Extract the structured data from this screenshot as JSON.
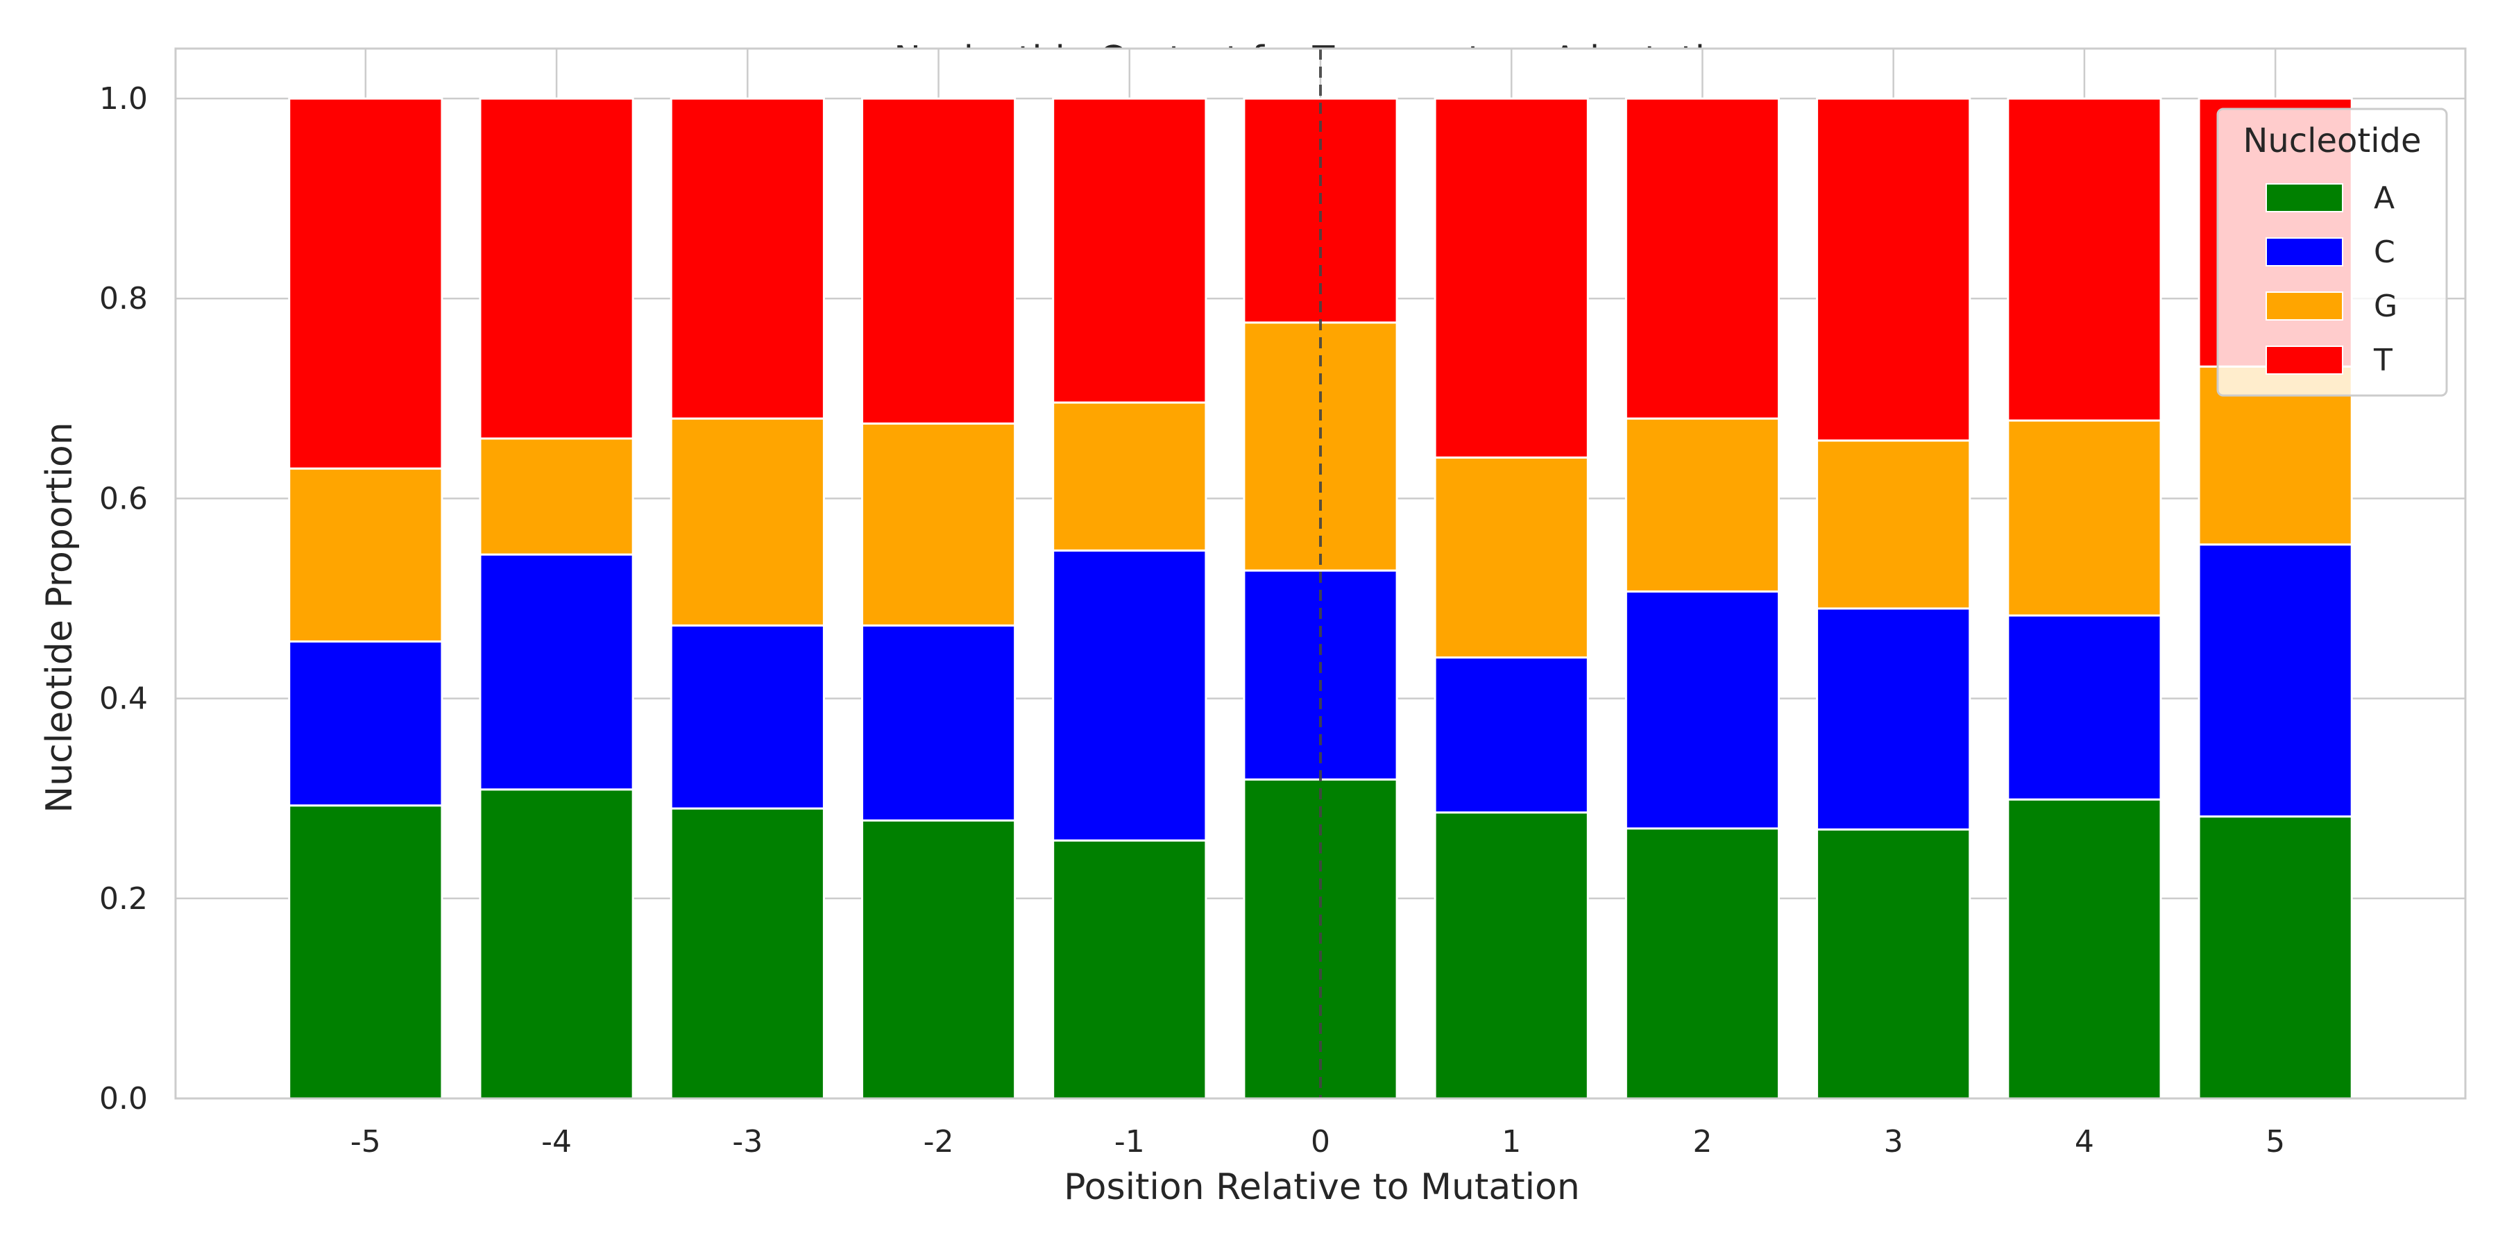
{
  "chart_data": {
    "type": "bar",
    "stacked": true,
    "title": "Nucleotide Context for Temperature Adaptation",
    "xlabel": "Position Relative to Mutation",
    "ylabel": "Nucleotide Proportion",
    "categories": [
      "-5",
      "-4",
      "-3",
      "-2",
      "-1",
      "0",
      "1",
      "2",
      "3",
      "4",
      "5"
    ],
    "ylim": [
      0,
      1.05
    ],
    "yticks": [
      "0.0",
      "0.2",
      "0.4",
      "0.6",
      "0.8",
      "1.0"
    ],
    "grid": true,
    "reference_line": {
      "x": "0",
      "style": "dashed"
    },
    "legend": {
      "title": "Nucleotide",
      "placement": "top-right"
    },
    "series": [
      {
        "name": "A",
        "color": "#008000",
        "values": [
          0.293,
          0.309,
          0.29,
          0.278,
          0.258,
          0.319,
          0.286,
          0.27,
          0.269,
          0.299,
          0.282
        ]
      },
      {
        "name": "C",
        "color": "#0000ff",
        "values": [
          0.164,
          0.235,
          0.183,
          0.195,
          0.29,
          0.209,
          0.155,
          0.237,
          0.221,
          0.184,
          0.272
        ]
      },
      {
        "name": "G",
        "color": "#ffa500",
        "values": [
          0.173,
          0.116,
          0.207,
          0.202,
          0.148,
          0.248,
          0.2,
          0.173,
          0.168,
          0.195,
          0.178
        ]
      },
      {
        "name": "T",
        "color": "#ff0000",
        "values": [
          0.37,
          0.34,
          0.32,
          0.325,
          0.304,
          0.224,
          0.359,
          0.32,
          0.342,
          0.322,
          0.268
        ]
      }
    ]
  }
}
